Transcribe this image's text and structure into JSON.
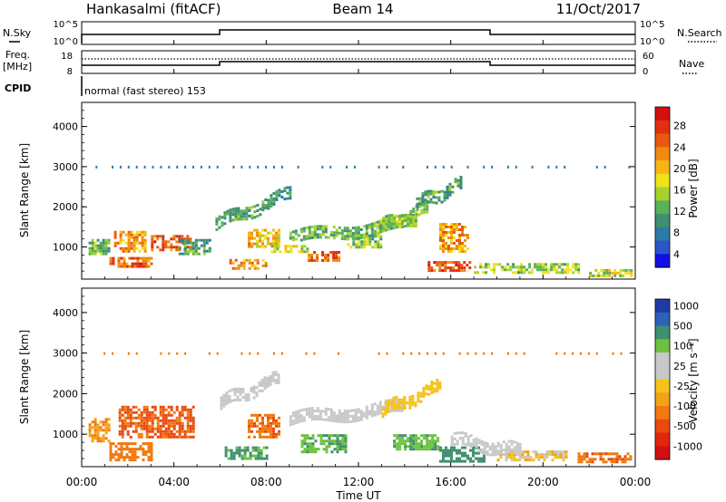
{
  "header": {
    "station": "Hankasalmi (fitACF)",
    "beam": "Beam 14",
    "date": "11/Oct/2017"
  },
  "summary_panels": {
    "nsky_label": "N.Sky",
    "nsky_ticks": [
      "10^5",
      "10^0"
    ],
    "nsearch_label": "N.Search",
    "nsearch_ticks": [
      "10^5",
      "10^0"
    ],
    "freq_label": "Freq.",
    "freq_unit": "[MHz]",
    "freq_ticks": [
      "18",
      "8"
    ],
    "nave_label": "Nave",
    "nave_ticks": [
      "60",
      "0"
    ],
    "cpid_label": "CPID",
    "cpid_text": "normal (fast stereo) 153"
  },
  "chart_data": [
    {
      "type": "heatmap",
      "name": "power",
      "ylabel": "Slant Range [km]",
      "xlabel": "",
      "ylim": [
        200,
        4600
      ],
      "yticks": [
        "1000",
        "2000",
        "3000",
        "4000"
      ],
      "colorbar": {
        "label": "Power [dB]",
        "ticks": [
          "4",
          "8",
          "12",
          "16",
          "20",
          "24",
          "28"
        ],
        "colors": [
          "#1010e6",
          "#2b55c8",
          "#2e7aa6",
          "#3f8f70",
          "#5bb05a",
          "#a6d32b",
          "#f0e21a",
          "#f5b516",
          "#f08a10",
          "#e85a0f",
          "#e0300d",
          "#d40f0f"
        ]
      },
      "regions": [
        {
          "t": [
            0.3,
            1.2
          ],
          "r": [
            850,
            1200
          ],
          "value": 12
        },
        {
          "t": [
            1.2,
            3.0
          ],
          "r": [
            500,
            750
          ],
          "value": 26
        },
        {
          "t": [
            1.4,
            2.8
          ],
          "r": [
            900,
            1400
          ],
          "value": 22
        },
        {
          "t": [
            3.0,
            4.8
          ],
          "r": [
            950,
            1300
          ],
          "value": 26
        },
        {
          "t": [
            4.2,
            5.6
          ],
          "r": [
            800,
            1200
          ],
          "value": 10
        },
        {
          "t": [
            6.4,
            8.0
          ],
          "r": [
            450,
            700
          ],
          "value": 22
        },
        {
          "t": [
            7.2,
            8.5
          ],
          "r": [
            1000,
            1450
          ],
          "value": 20
        },
        {
          "t": [
            8.2,
            9.8
          ],
          "r": [
            850,
            1050
          ],
          "value": 16
        },
        {
          "t": [
            9.8,
            11.2
          ],
          "r": [
            650,
            900
          ],
          "value": 26
        },
        {
          "t": [
            11.5,
            13.0
          ],
          "r": [
            1000,
            1300
          ],
          "value": 14
        },
        {
          "t": [
            15.0,
            16.8
          ],
          "r": [
            400,
            650
          ],
          "value": 27
        },
        {
          "t": [
            15.5,
            16.7
          ],
          "r": [
            900,
            1600
          ],
          "value": 22
        },
        {
          "t": [
            17.0,
            21.5
          ],
          "r": [
            350,
            600
          ],
          "value": 14
        },
        {
          "t": [
            22.0,
            23.8
          ],
          "r": [
            300,
            450
          ],
          "value": 16
        }
      ],
      "arcs": [
        {
          "t": [
            5.8,
            9.0
          ],
          "r0": 1600,
          "r1": 2350,
          "value": 10
        },
        {
          "t": [
            9.0,
            14.5
          ],
          "r0": 1250,
          "r1": 1650,
          "value": 12
        },
        {
          "t": [
            12.8,
            15.0
          ],
          "r0": 1500,
          "r1": 2000,
          "value": 14
        },
        {
          "t": [
            14.5,
            16.5
          ],
          "r0": 2100,
          "r1": 2600,
          "value": 10
        }
      ]
    },
    {
      "type": "heatmap",
      "name": "velocity",
      "ylabel": "Slant Range [km]",
      "xlabel": "Time UT",
      "ylim": [
        200,
        4600
      ],
      "yticks": [
        "1000",
        "2000",
        "3000",
        "4000"
      ],
      "xticks": [
        "00:00",
        "04:00",
        "08:00",
        "12:00",
        "16:00",
        "20:00",
        "00:00"
      ],
      "colorbar": {
        "label": "Velocity [m s⁻¹]",
        "ticks": [
          "1000",
          "500",
          "100",
          "25",
          "-25",
          "-100",
          "-500",
          "-1000"
        ],
        "colors": [
          "#1e3aa8",
          "#2c62b8",
          "#3f8f70",
          "#6cc23f",
          "#c8c8c8",
          "#c8c8c8",
          "#f5c21a",
          "#f5a316",
          "#f07a10",
          "#e84a0f",
          "#e0260d",
          "#d40f0f"
        ]
      },
      "regions": [
        {
          "t": [
            0.3,
            1.2
          ],
          "r": [
            800,
            1400
          ],
          "value": -150
        },
        {
          "t": [
            1.2,
            3.0
          ],
          "r": [
            350,
            800
          ],
          "value": -300
        },
        {
          "t": [
            1.6,
            4.8
          ],
          "r": [
            900,
            1700
          ],
          "value": -400
        },
        {
          "t": [
            6.2,
            8.0
          ],
          "r": [
            400,
            700
          ],
          "value": 200
        },
        {
          "t": [
            7.2,
            8.6
          ],
          "r": [
            900,
            1500
          ],
          "value": -350
        },
        {
          "t": [
            9.5,
            11.5
          ],
          "r": [
            550,
            1000
          ],
          "value": 150
        },
        {
          "t": [
            13.5,
            15.5
          ],
          "r": [
            600,
            1000
          ],
          "value": 150
        },
        {
          "t": [
            15.5,
            17.5
          ],
          "r": [
            300,
            700
          ],
          "value": 250
        },
        {
          "t": [
            18.0,
            21.0
          ],
          "r": [
            350,
            600
          ],
          "value": -20
        },
        {
          "t": [
            21.5,
            23.8
          ],
          "r": [
            300,
            550
          ],
          "value": -350
        }
      ],
      "arcs": [
        {
          "t": [
            6.0,
            8.5
          ],
          "r0": 1800,
          "r1": 2400,
          "value": 0
        },
        {
          "t": [
            9.0,
            14.0
          ],
          "r0": 1400,
          "r1": 1700,
          "value": 0
        },
        {
          "t": [
            13.0,
            15.5
          ],
          "r0": 1600,
          "r1": 2200,
          "value": -30
        },
        {
          "t": [
            16.0,
            19.0
          ],
          "r0": 900,
          "r1": 600,
          "value": 0
        }
      ]
    }
  ]
}
